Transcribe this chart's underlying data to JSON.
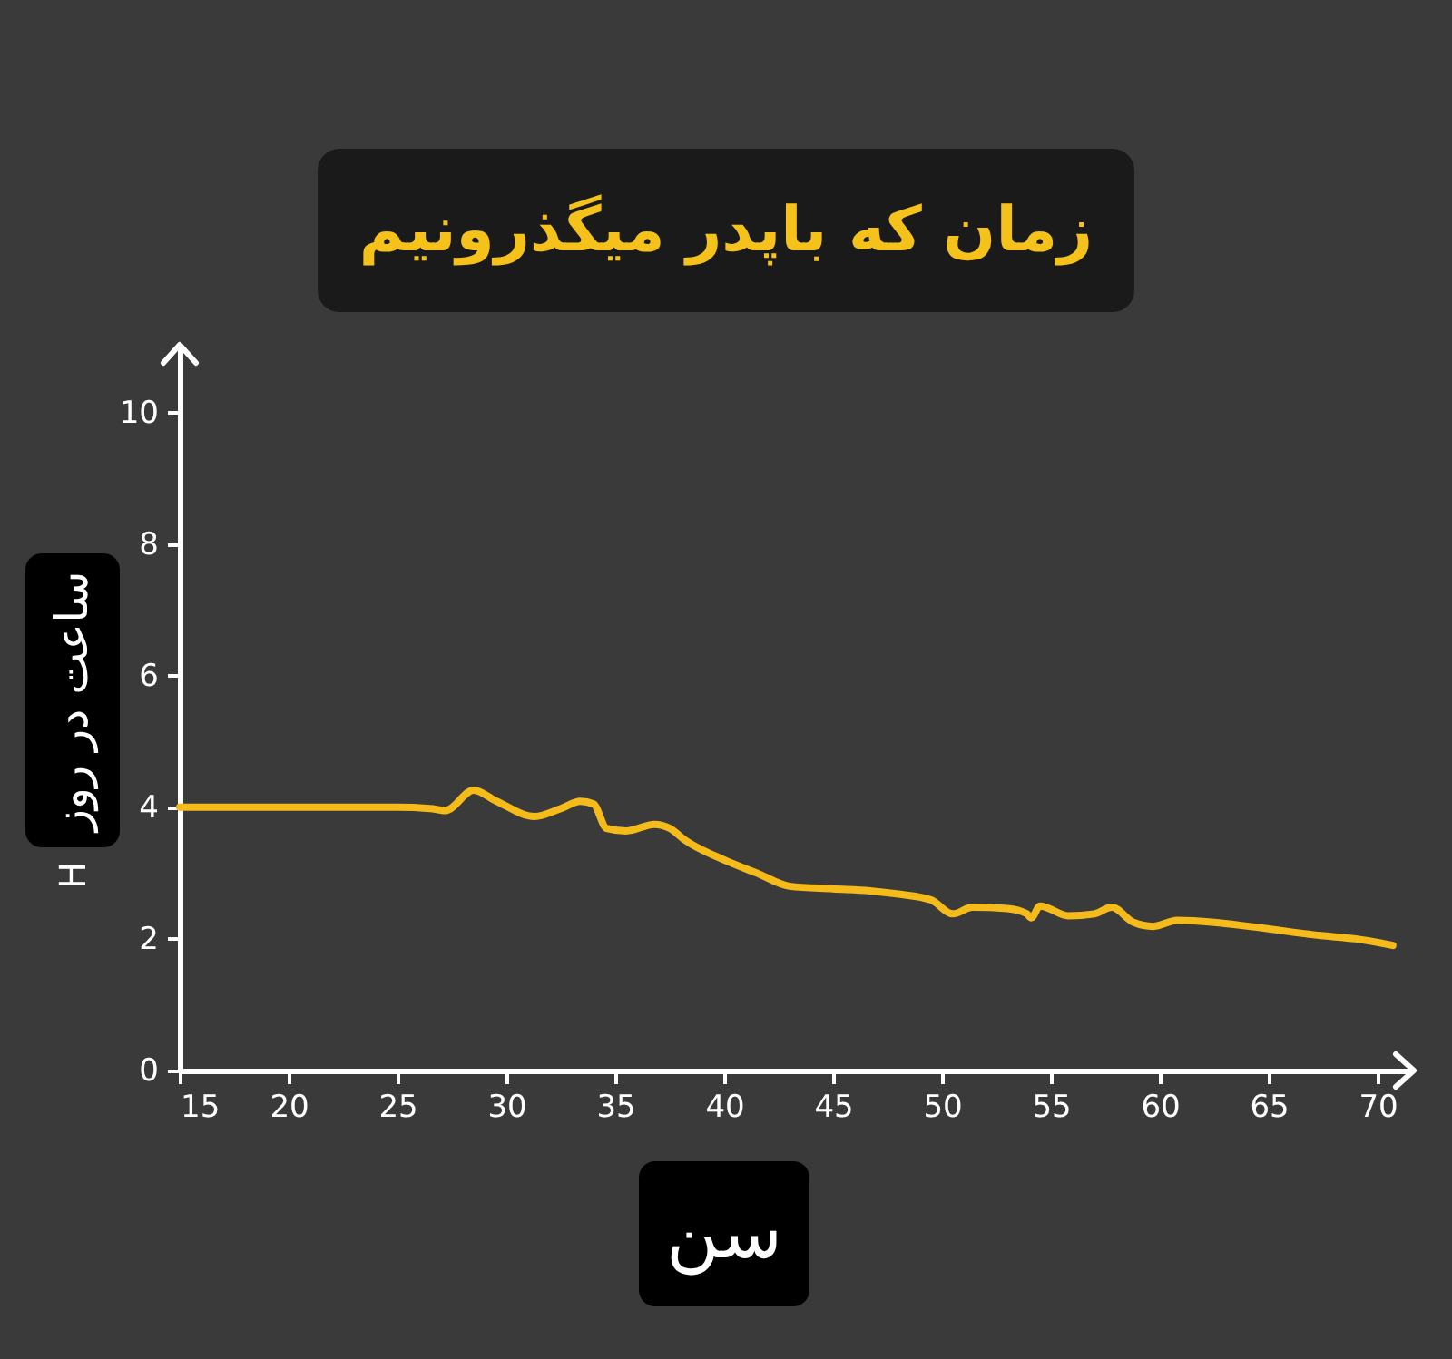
{
  "chart_data": {
    "type": "line",
    "title": "زمان که باپدر میگذرونیم",
    "xlabel": "سن",
    "ylabel": "ساعت در روز",
    "annotations": [
      "H"
    ],
    "x": [
      15,
      20,
      25,
      26.5,
      27.2,
      28.5,
      29.5,
      31.3,
      32.5,
      33.4,
      34.0,
      34.6,
      35.5,
      36.8,
      37.5,
      38.2,
      40,
      41.5,
      43,
      45,
      46.7,
      48,
      49.5,
      50.5,
      51.4,
      53,
      53.9,
      54.1,
      54.5,
      55.8,
      57,
      57.8,
      58.8,
      59.7,
      60.8,
      62.5,
      64.1,
      67.4,
      69,
      70.7
    ],
    "series": [
      {
        "color": "#f4bb1a",
        "values": [
          4.0,
          4.0,
          4.0,
          3.98,
          3.95,
          4.26,
          4.1,
          3.86,
          3.98,
          4.09,
          4.05,
          3.68,
          3.64,
          3.74,
          3.68,
          3.5,
          3.2,
          3.0,
          2.8,
          2.76,
          2.73,
          2.68,
          2.59,
          2.38,
          2.48,
          2.46,
          2.38,
          2.32,
          2.5,
          2.35,
          2.38,
          2.48,
          2.25,
          2.19,
          2.28,
          2.25,
          2.19,
          2.05,
          2.0,
          1.9
        ]
      }
    ],
    "xlim": [
      15,
      71.5
    ],
    "ylim": [
      0,
      11
    ],
    "xticks": [
      15,
      20,
      25,
      30,
      35,
      40,
      45,
      50,
      55,
      60,
      65,
      70
    ],
    "yticks": [
      0,
      2,
      4,
      6,
      8,
      10
    ]
  }
}
